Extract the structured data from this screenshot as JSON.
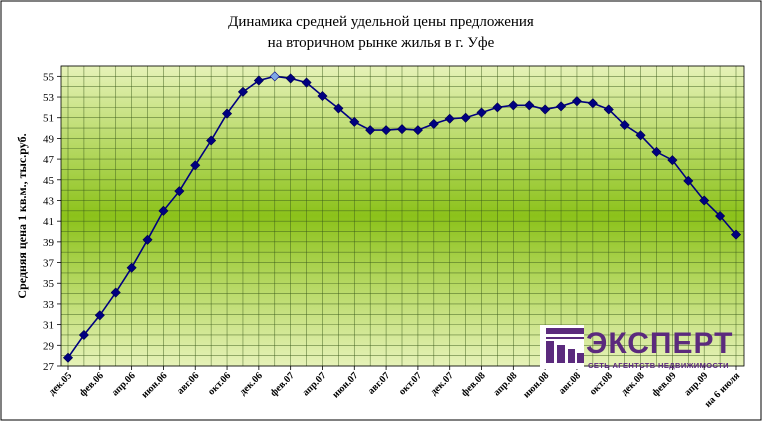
{
  "chart_data": {
    "type": "line",
    "title_lines": [
      "Динамика средней удельной цены предложения",
      "на вторичном рынке жилья в г. Уфе"
    ],
    "ylabel": "Средняя цена 1 кв.м., тыс.руб.",
    "xlabel": "",
    "ylim": [
      27,
      56
    ],
    "y_ticks": [
      27,
      29,
      31,
      33,
      35,
      37,
      39,
      41,
      43,
      45,
      47,
      49,
      51,
      53,
      55
    ],
    "x_tick_labels": [
      "дек.05",
      "фев.06",
      "апр.06",
      "июн.06",
      "авг.06",
      "окт.06",
      "дек.06",
      "фев.07",
      "апр.07",
      "июн.07",
      "авг.07",
      "окт.07",
      "дек.07",
      "фев.08",
      "апр.08",
      "июн.08",
      "авг.08",
      "окт.08",
      "дек.08",
      "фев.09",
      "апр.09",
      "на 6 июля"
    ],
    "grid": true,
    "legend": "none",
    "colors": {
      "line": "#000080",
      "marker": "#000080",
      "marker_highlight": "#7fa8e6",
      "band_light": "#e6f2b8",
      "band_dark": "#8cc21a",
      "grid": "#3a5a1a"
    },
    "series": [
      {
        "values": [
          27.8,
          30.0,
          31.9,
          34.1,
          36.5,
          39.2,
          42.0,
          43.9,
          46.4,
          48.8,
          51.4,
          53.5,
          54.6,
          55.0,
          54.8,
          54.4,
          53.1,
          51.9,
          50.6,
          49.8,
          49.8,
          49.9,
          49.8,
          50.4,
          50.9,
          51.0,
          51.5,
          52.0,
          52.2,
          52.2,
          51.8,
          52.1,
          52.6,
          52.4,
          51.8,
          50.3,
          49.3,
          47.7,
          46.9,
          44.9,
          43.0,
          41.5,
          39.7
        ],
        "highlight_index": 13
      }
    ]
  },
  "logo": {
    "word": "ЭКСПЕРТ",
    "tagline": "СЕТЬ АГЕНТСТВ НЕДВИЖИМОСТИ",
    "color": "#5b2a7d"
  }
}
